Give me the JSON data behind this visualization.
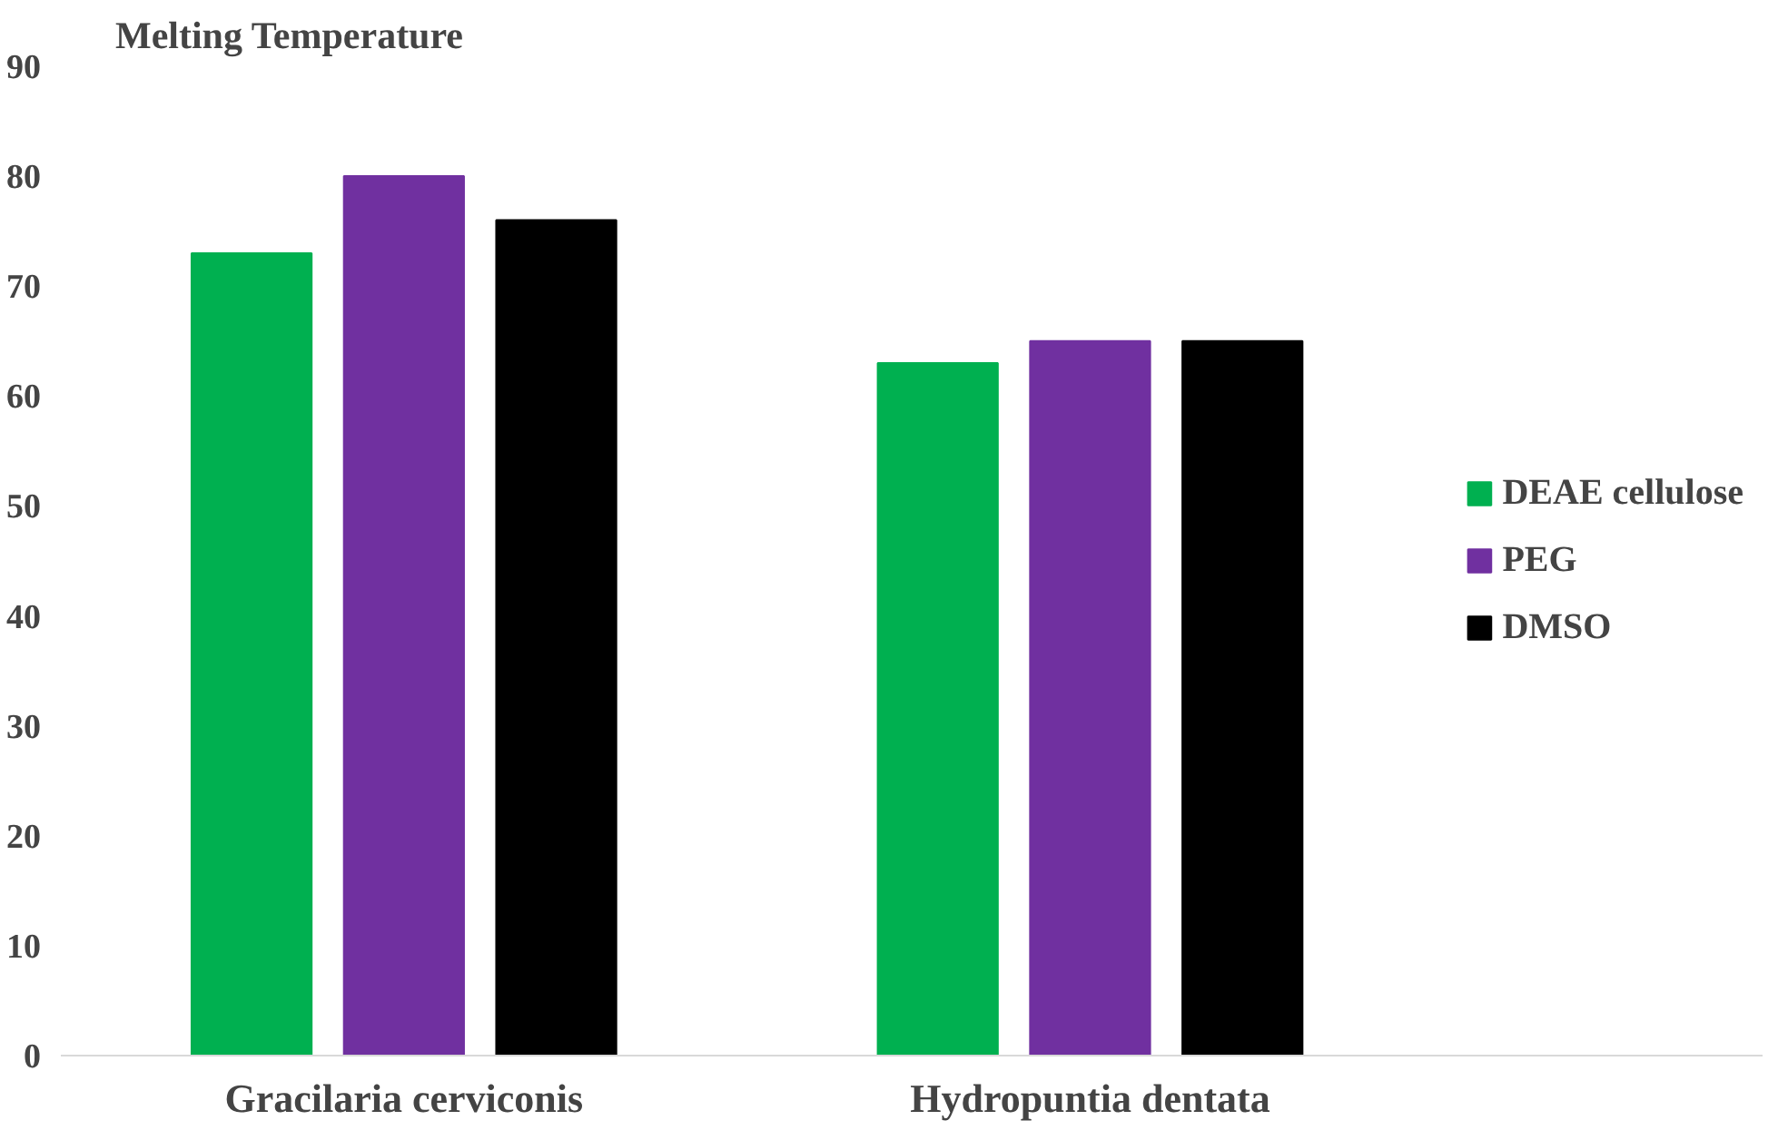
{
  "chart_data": {
    "type": "bar",
    "title": "Melting Temperature",
    "categories": [
      "Gracilaria cerviconis",
      "Hydropuntia dentata"
    ],
    "series": [
      {
        "name": "DEAE cellulose",
        "color": "#00b050",
        "values": [
          73,
          63
        ]
      },
      {
        "name": "PEG",
        "color": "#7030a0",
        "values": [
          80,
          65
        ]
      },
      {
        "name": "DMSO",
        "color": "#000000",
        "values": [
          76,
          65
        ]
      }
    ],
    "ylim": [
      0,
      90
    ],
    "yticks": [
      0,
      10,
      20,
      30,
      40,
      50,
      60,
      70,
      80,
      90
    ],
    "grid": false,
    "legend": "right"
  }
}
